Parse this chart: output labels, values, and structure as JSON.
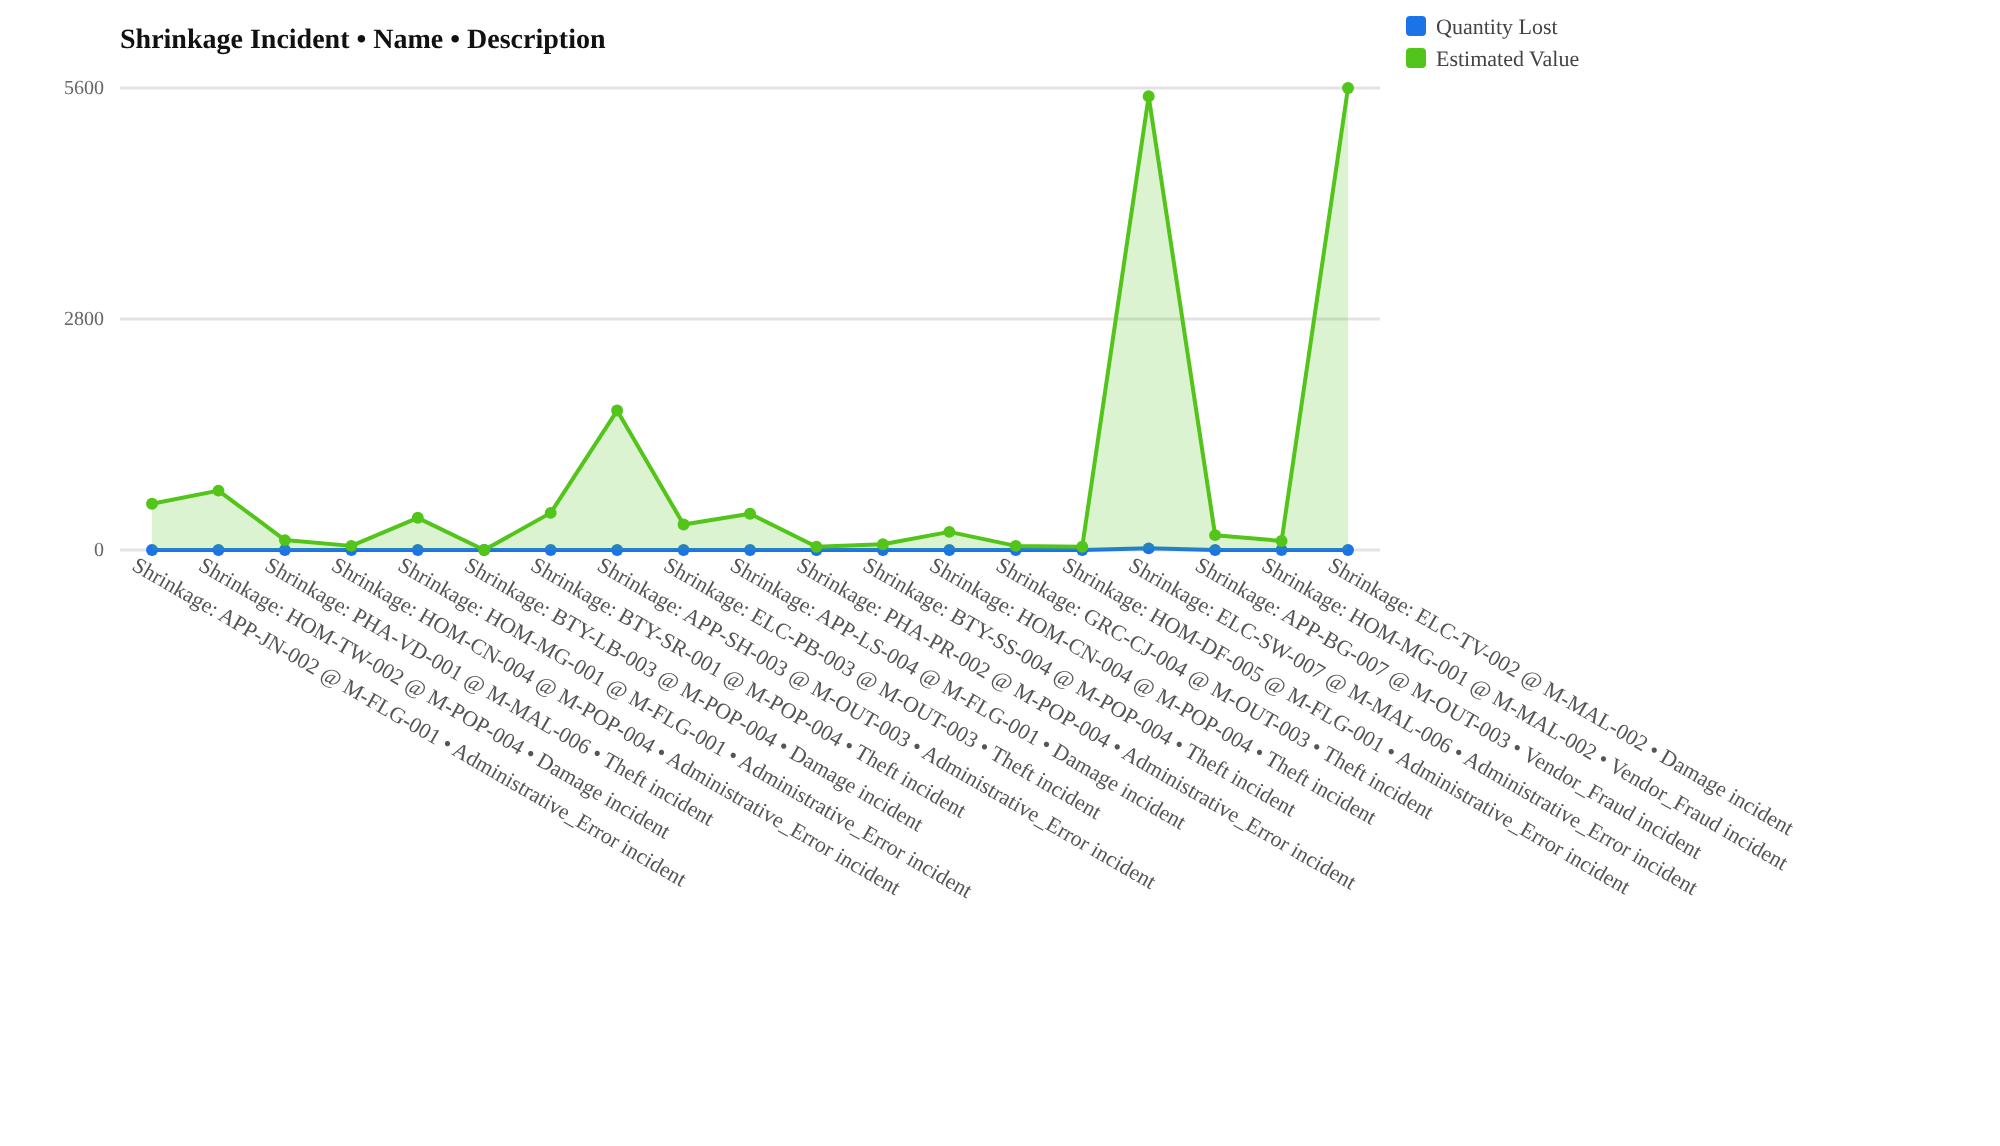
{
  "chart_data": {
    "type": "area",
    "title": "Shrinkage Incident • Name • Description",
    "categories": [
      "Shrinkage: APP-JN-002 @ M-FLG-001 • Administrative_Error incident",
      "Shrinkage: HOM-TW-002 @ M-POP-004 • Damage incident",
      "Shrinkage: PHA-VD-001 @ M-MAL-006 • Theft incident",
      "Shrinkage: HOM-CN-004 @ M-POP-004 • Administrative_Error incident",
      "Shrinkage: HOM-MG-001 @ M-FLG-001 • Administrative_Error incident",
      "Shrinkage: BTY-LB-003 @ M-POP-004 • Damage incident",
      "Shrinkage: BTY-SR-001 @ M-POP-004 • Theft incident",
      "Shrinkage: APP-SH-003 @ M-OUT-003 • Administrative_Error incident",
      "Shrinkage: ELC-PB-003 @ M-OUT-003 • Theft incident",
      "Shrinkage: APP-LS-004 @ M-FLG-001 • Damage incident",
      "Shrinkage: PHA-PR-002 @ M-POP-004 • Administrative_Error incident",
      "Shrinkage: BTY-SS-004 @ M-POP-004 • Theft incident",
      "Shrinkage: HOM-CN-004 @ M-POP-004 • Theft incident",
      "Shrinkage: GRC-CJ-004 @ M-OUT-003 • Theft incident",
      "Shrinkage: HOM-DF-005 @ M-FLG-001 • Administrative_Error incident",
      "Shrinkage: ELC-SW-007 @ M-MAL-006 • Administrative_Error incident",
      "Shrinkage: APP-BG-007 @ M-OUT-003 • Vendor_Fraud incident",
      "Shrinkage: HOM-MG-001 @ M-MAL-002 • Vendor_Fraud incident",
      "Shrinkage: ELC-TV-002 @ M-MAL-002 • Damage incident"
    ],
    "series": [
      {
        "name": "Quantity Lost",
        "color": "#1a73e8",
        "values": [
          0,
          0,
          0,
          0,
          0,
          0,
          0,
          0,
          0,
          0,
          0,
          0,
          0,
          0,
          0,
          20,
          0,
          0,
          0
        ]
      },
      {
        "name": "Estimated Value",
        "color": "#52c41a",
        "values": [
          560,
          720,
          120,
          50,
          390,
          0,
          450,
          1690,
          310,
          440,
          40,
          70,
          220,
          50,
          40,
          5500,
          180,
          110,
          5600
        ]
      }
    ],
    "ylim": [
      0,
      5600
    ],
    "yticks": [
      0,
      2800,
      5600
    ],
    "grid": "y",
    "legend": "top right",
    "marker": "circle",
    "line_style": "solid"
  }
}
